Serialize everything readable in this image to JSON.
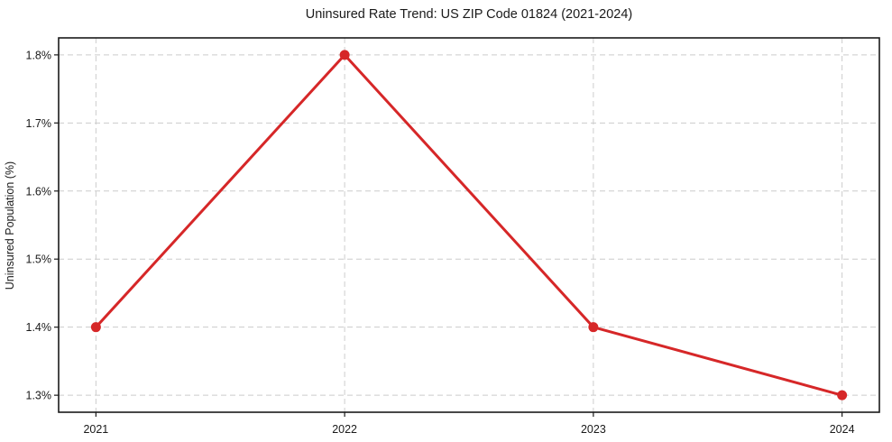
{
  "page": {
    "background": "#ffffff"
  },
  "chart_data": {
    "type": "line",
    "title": "Uninsured Rate Trend: US ZIP Code 01824 (2021-2024)",
    "xlabel": "",
    "ylabel": "Uninsured Population (%)",
    "x": [
      2021,
      2022,
      2023,
      2024
    ],
    "series": [
      {
        "name": "Uninsured rate",
        "values": [
          1.4,
          1.8,
          1.4,
          1.3
        ],
        "color": "#d62728",
        "marker": "circle",
        "line_width": 3
      }
    ],
    "xtick_labels": [
      "2021",
      "2022",
      "2023",
      "2024"
    ],
    "ytick_values": [
      1.3,
      1.4,
      1.5,
      1.6,
      1.7,
      1.8
    ],
    "ytick_labels": [
      "1.3%",
      "1.4%",
      "1.5%",
      "1.6%",
      "1.7%",
      "1.8%"
    ],
    "xlim": [
      2020.85,
      2024.15
    ],
    "ylim": [
      1.275,
      1.825
    ],
    "grid": true,
    "grid_style": "dashed",
    "legend": "none",
    "colors": {
      "line": "#d62728",
      "grid": "#cccccc",
      "spine": "#1a1a1a",
      "tick": "#1a1a1a",
      "text": "#1a1a1a",
      "background": "#ffffff"
    }
  }
}
